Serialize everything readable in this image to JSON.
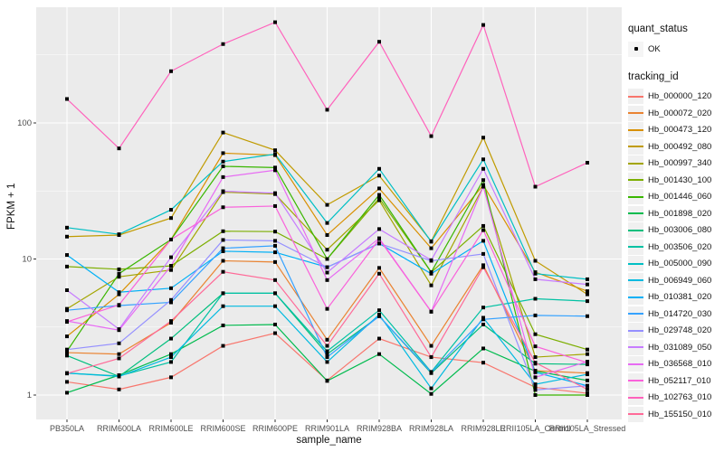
{
  "chart_data": {
    "type": "line",
    "title": "",
    "xlabel": "sample_name",
    "ylabel": "FPKM + 1",
    "y_scale": "log10",
    "y_ticks": [
      1,
      10,
      100
    ],
    "y_tick_labels": [
      "1",
      "10",
      "100"
    ],
    "y_minor_ticks": [
      3.1623,
      31.623,
      316.228
    ],
    "ylim": [
      0.66,
      710
    ],
    "grid": true,
    "legend_position": "right",
    "point_color": "#000000",
    "categories": [
      "PB350LA",
      "RRIM600LA",
      "RRIM600LE",
      "RRIM600SE",
      "RRIM600PE",
      "RRIM901LA",
      "RRIM928BA",
      "RRIM928LA",
      "RRIM928LE",
      "RRII105LA_Control",
      "RRII105LA_Stressed"
    ],
    "series": [
      {
        "name": "Hb_000000_120",
        "color": "#F8766D",
        "values": [
          1.25,
          1.1,
          1.35,
          2.3,
          2.85,
          1.28,
          2.6,
          1.9,
          1.73,
          1.14,
          1.03
        ]
      },
      {
        "name": "Hb_000072_020",
        "color": "#EA8331",
        "values": [
          2.05,
          2.0,
          3.4,
          9.7,
          9.5,
          2.55,
          8.6,
          2.3,
          9.0,
          1.51,
          1.45
        ]
      },
      {
        "name": "Hb_000473_120",
        "color": "#D89000",
        "values": [
          2.7,
          5.5,
          13.9,
          60.0,
          58.0,
          15.0,
          33.0,
          12.0,
          35.0,
          8.0,
          5.8
        ]
      },
      {
        "name": "Hb_000492_080",
        "color": "#C09B00",
        "values": [
          14.6,
          15.0,
          20.0,
          85.0,
          63.0,
          25.0,
          41.0,
          13.5,
          78.0,
          9.7,
          5.5
        ]
      },
      {
        "name": "Hb_000997_340",
        "color": "#A3A500",
        "values": [
          4.3,
          7.4,
          8.3,
          31.0,
          30.0,
          11.7,
          27.0,
          6.4,
          34.0,
          1.9,
          2.0
        ]
      },
      {
        "name": "Hb_001430_100",
        "color": "#7CAE00",
        "values": [
          8.8,
          8.4,
          8.9,
          16.0,
          15.9,
          10.0,
          28.0,
          8.0,
          17.5,
          2.8,
          2.16
        ]
      },
      {
        "name": "Hb_001446_060",
        "color": "#39B600",
        "values": [
          2.1,
          7.8,
          13.9,
          48.0,
          47.0,
          10.0,
          29.6,
          8.0,
          38.0,
          1.0,
          1.0
        ]
      },
      {
        "name": "Hb_001898_020",
        "color": "#00BB4E",
        "values": [
          1.04,
          1.4,
          2.0,
          3.25,
          3.3,
          1.27,
          2.0,
          1.02,
          2.2,
          1.5,
          1.28
        ]
      },
      {
        "name": "Hb_003006_080",
        "color": "#00BF7D",
        "values": [
          1.95,
          1.37,
          2.6,
          5.6,
          5.6,
          2.0,
          3.8,
          1.45,
          3.3,
          1.7,
          1.68
        ]
      },
      {
        "name": "Hb_003506_020",
        "color": "#00C1A3",
        "values": [
          1.45,
          1.38,
          1.75,
          5.6,
          5.6,
          2.1,
          4.2,
          1.48,
          4.4,
          5.1,
          4.9
        ]
      },
      {
        "name": "Hb_005000_090",
        "color": "#00BFC4",
        "values": [
          17.0,
          15.2,
          23.0,
          52.0,
          59.0,
          18.4,
          46.0,
          13.4,
          54.0,
          7.8,
          7.1
        ]
      },
      {
        "name": "Hb_006949_060",
        "color": "#00BAE0",
        "values": [
          1.45,
          1.37,
          1.9,
          4.5,
          4.5,
          1.75,
          3.9,
          1.12,
          3.7,
          1.2,
          1.42
        ]
      },
      {
        "name": "Hb_010381_020",
        "color": "#00B0F6",
        "values": [
          10.7,
          5.7,
          6.1,
          11.4,
          11.2,
          8.7,
          13.0,
          7.8,
          13.6,
          1.47,
          1.17
        ]
      },
      {
        "name": "Hb_014720_030",
        "color": "#35A2FF",
        "values": [
          4.2,
          4.55,
          4.8,
          12.0,
          12.5,
          1.9,
          3.8,
          1.47,
          3.6,
          3.85,
          3.8
        ]
      },
      {
        "name": "Hb_029748_020",
        "color": "#9590FF",
        "values": [
          2.16,
          2.4,
          5.0,
          13.8,
          13.6,
          8.7,
          13.0,
          9.7,
          10.9,
          1.09,
          1.17
        ]
      },
      {
        "name": "Hb_031089_050",
        "color": "#C77CFF",
        "values": [
          5.9,
          3.05,
          10.3,
          31.5,
          30.5,
          7.95,
          16.6,
          9.8,
          46.0,
          7.1,
          6.5
        ]
      },
      {
        "name": "Hb_036568_010",
        "color": "#E76BF3",
        "values": [
          3.5,
          3.0,
          8.9,
          40.0,
          44.9,
          7.0,
          14.2,
          4.1,
          34.0,
          1.35,
          1.76
        ]
      },
      {
        "name": "Hb_052117_010",
        "color": "#FA62DB",
        "values": [
          3.45,
          4.6,
          13.9,
          24.0,
          24.5,
          4.3,
          14.0,
          4.1,
          16.3,
          2.28,
          1.73
        ]
      },
      {
        "name": "Hb_102763_010",
        "color": "#FF62BC",
        "values": [
          150,
          65,
          240,
          380,
          550,
          125,
          395,
          80,
          525,
          34,
          51
        ]
      },
      {
        "name": "Hb_155150_010",
        "color": "#FF6A98",
        "values": [
          1.44,
          1.86,
          3.5,
          8.05,
          7.0,
          2.3,
          7.8,
          1.9,
          8.7,
          1.73,
          1.1
        ]
      }
    ]
  },
  "legend": {
    "quant_status": {
      "title": "quant_status",
      "items": [
        {
          "label": "OK",
          "marker": "point"
        }
      ]
    },
    "tracking_id": {
      "title": "tracking_id"
    }
  },
  "theme": {
    "panel_bg": "#EBEBEB",
    "grid_color": "#FFFFFF",
    "tick_text_color": "#4D4D4D",
    "tick_mark_color": "#333333",
    "text_color": "#111111",
    "key_bg": "#F0F0F0"
  }
}
